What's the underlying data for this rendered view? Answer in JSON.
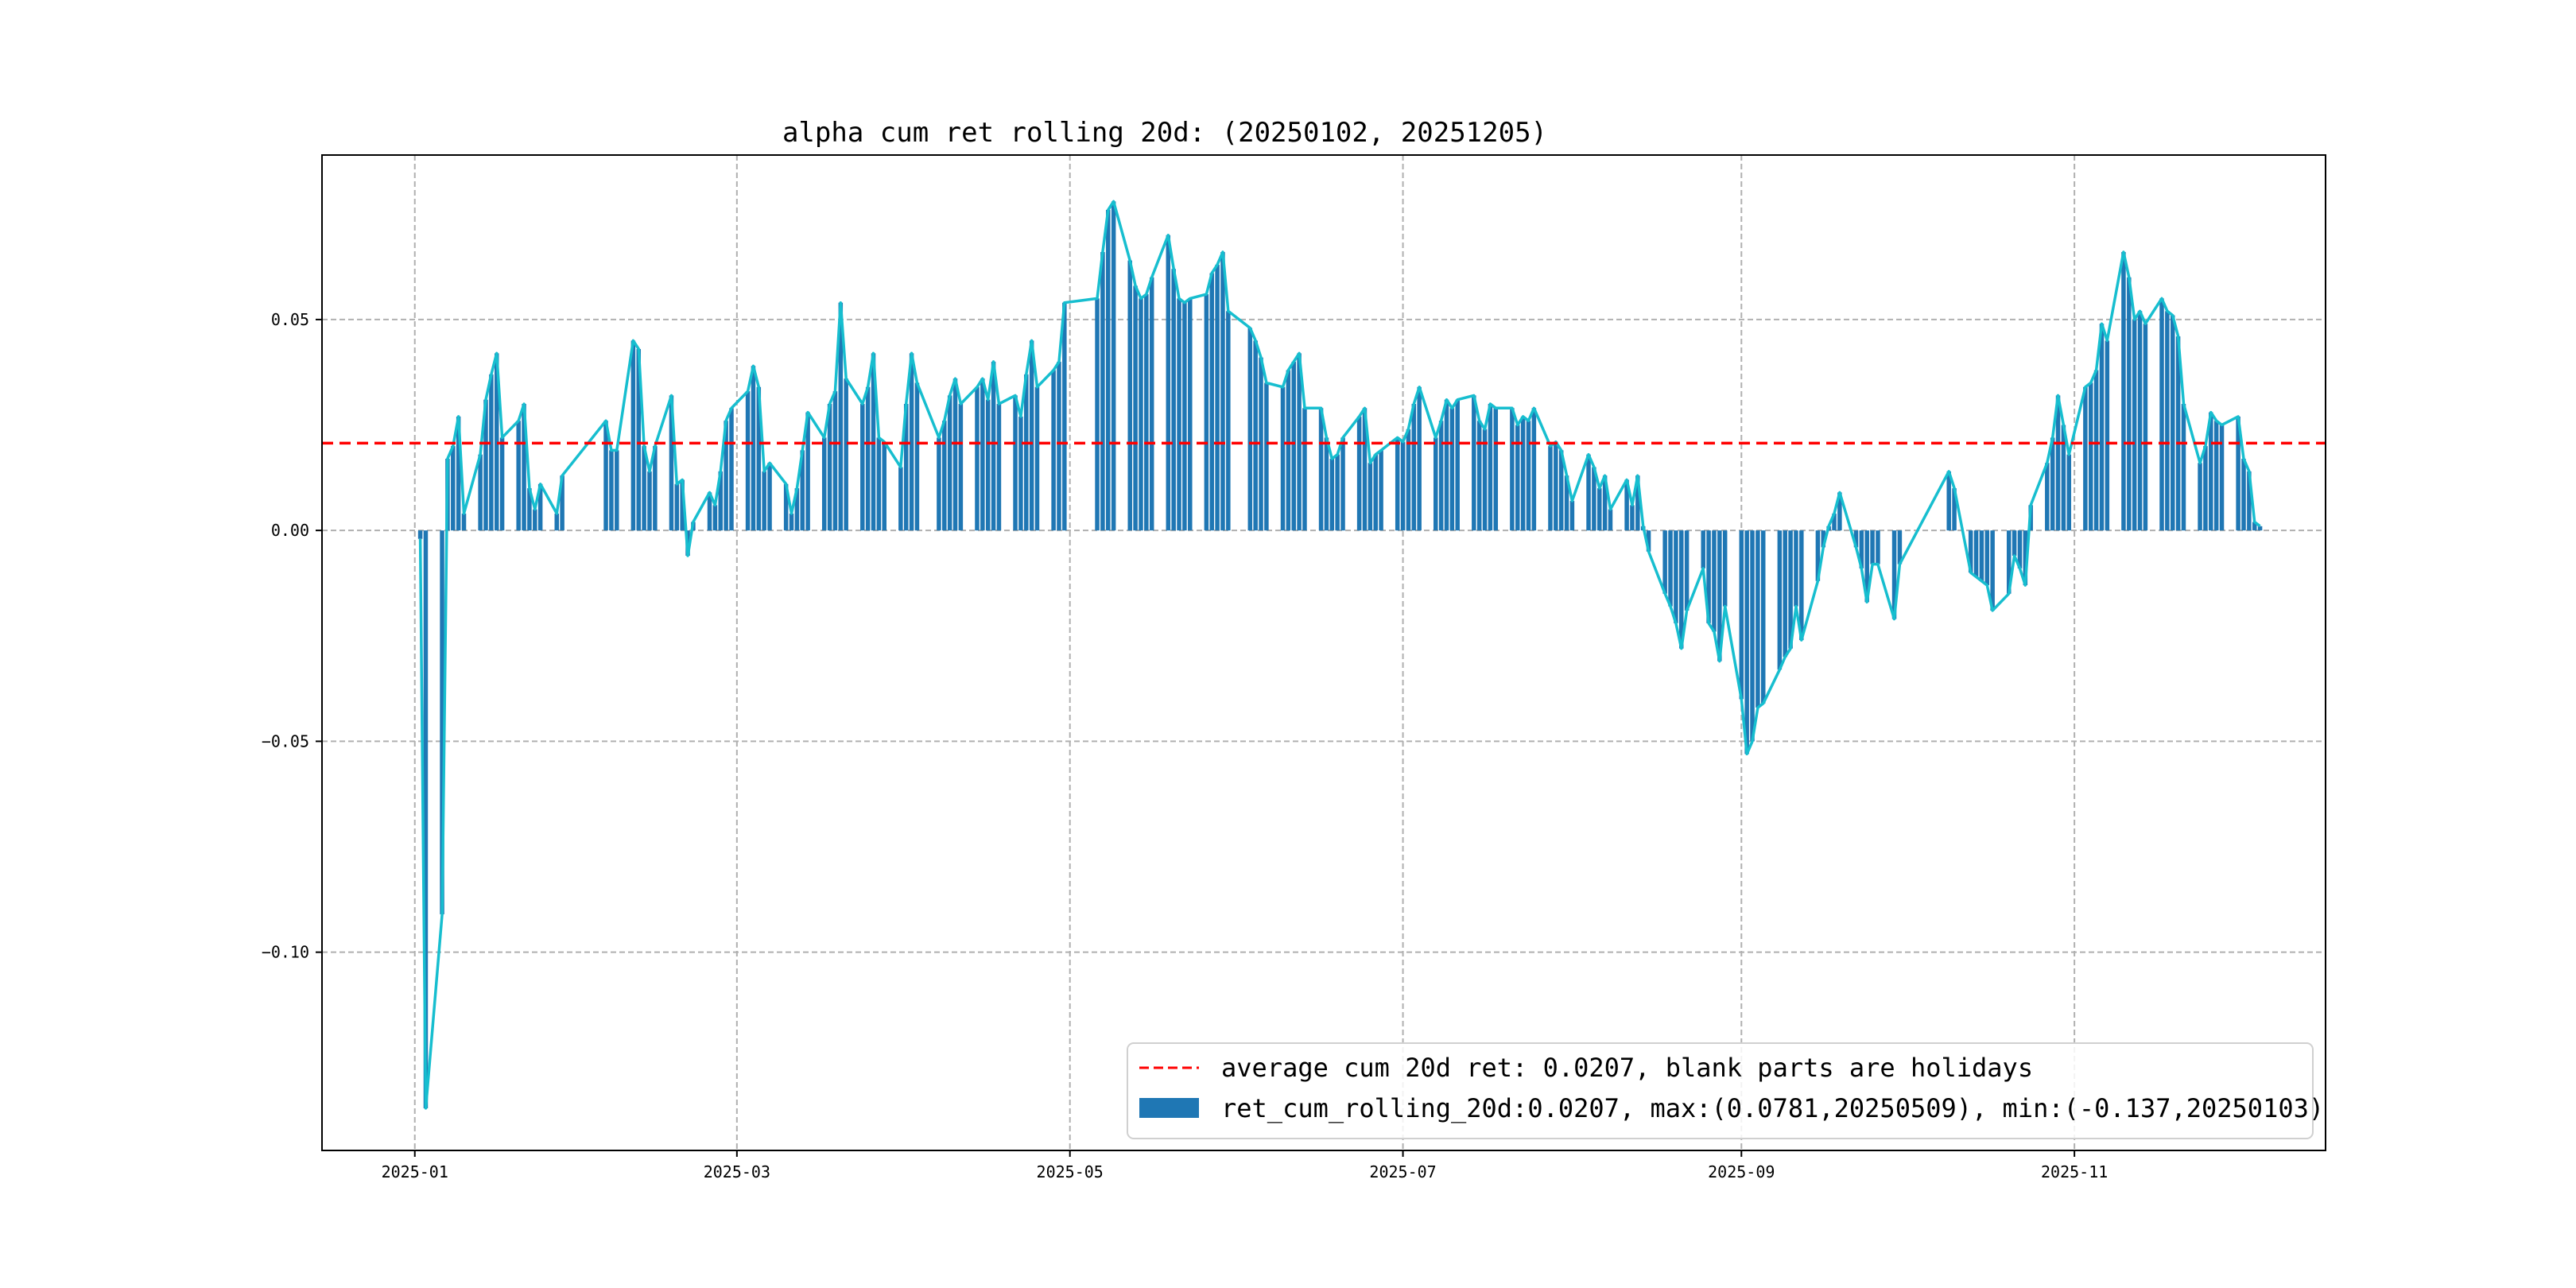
{
  "chart_data": {
    "type": "bar",
    "title": "alpha cum ret rolling 20d: (20250102, 20251205)",
    "xlabel": "",
    "ylabel": "",
    "x_ticks": [
      "2025-01",
      "2025-03",
      "2025-05",
      "2025-07",
      "2025-09",
      "2025-11"
    ],
    "y_ticks": [
      "0.05",
      "0.00",
      "−0.05",
      "−0.10"
    ],
    "xlim": [
      "2024-12-15",
      "2025-12-17"
    ],
    "ylim": [
      -0.147,
      0.089
    ],
    "grid": true,
    "legend_position": "lower-right",
    "average_line": {
      "value": 0.0207,
      "color": "#ff0000",
      "label": "average cum 20d ret: 0.0207, blank parts are holidays"
    },
    "series": [
      {
        "name": "ret_cum_rolling_20d:0.0207, max:(0.0781,20250509), min:(-0.137,20250103)",
        "bar_color": "#1f77b4",
        "line_color": "#17becf",
        "points": [
          [
            "2025-01-02",
            -0.002
          ],
          [
            "2025-01-03",
            -0.137
          ],
          [
            "2025-01-06",
            -0.091
          ],
          [
            "2025-01-07",
            0.017
          ],
          [
            "2025-01-08",
            0.02
          ],
          [
            "2025-01-09",
            0.027
          ],
          [
            "2025-01-10",
            0.004
          ],
          [
            "2025-01-13",
            0.018
          ],
          [
            "2025-01-14",
            0.031
          ],
          [
            "2025-01-15",
            0.037
          ],
          [
            "2025-01-16",
            0.042
          ],
          [
            "2025-01-17",
            0.022
          ],
          [
            "2025-01-20",
            0.026
          ],
          [
            "2025-01-21",
            0.03
          ],
          [
            "2025-01-22",
            0.01
          ],
          [
            "2025-01-23",
            0.005
          ],
          [
            "2025-01-24",
            0.011
          ],
          [
            "2025-01-27",
            0.004
          ],
          [
            "2025-01-28",
            0.013
          ],
          [
            "2025-02-05",
            0.026
          ],
          [
            "2025-02-06",
            0.019
          ],
          [
            "2025-02-07",
            0.019
          ],
          [
            "2025-02-10",
            0.045
          ],
          [
            "2025-02-11",
            0.043
          ],
          [
            "2025-02-12",
            0.02
          ],
          [
            "2025-02-13",
            0.014
          ],
          [
            "2025-02-14",
            0.02
          ],
          [
            "2025-02-17",
            0.032
          ],
          [
            "2025-02-18",
            0.011
          ],
          [
            "2025-02-19",
            0.012
          ],
          [
            "2025-02-20",
            -0.006
          ],
          [
            "2025-02-21",
            0.002
          ],
          [
            "2025-02-24",
            0.009
          ],
          [
            "2025-02-25",
            0.006
          ],
          [
            "2025-02-26",
            0.014
          ],
          [
            "2025-02-27",
            0.026
          ],
          [
            "2025-02-28",
            0.029
          ],
          [
            "2025-03-03",
            0.033
          ],
          [
            "2025-03-04",
            0.039
          ],
          [
            "2025-03-05",
            0.034
          ],
          [
            "2025-03-06",
            0.014
          ],
          [
            "2025-03-07",
            0.016
          ],
          [
            "2025-03-10",
            0.011
          ],
          [
            "2025-03-11",
            0.004
          ],
          [
            "2025-03-12",
            0.01
          ],
          [
            "2025-03-13",
            0.019
          ],
          [
            "2025-03-14",
            0.028
          ],
          [
            "2025-03-17",
            0.022
          ],
          [
            "2025-03-18",
            0.03
          ],
          [
            "2025-03-19",
            0.033
          ],
          [
            "2025-03-20",
            0.054
          ],
          [
            "2025-03-21",
            0.036
          ],
          [
            "2025-03-24",
            0.03
          ],
          [
            "2025-03-25",
            0.034
          ],
          [
            "2025-03-26",
            0.042
          ],
          [
            "2025-03-27",
            0.022
          ],
          [
            "2025-03-28",
            0.021
          ],
          [
            "2025-03-31",
            0.015
          ],
          [
            "2025-04-01",
            0.03
          ],
          [
            "2025-04-02",
            0.042
          ],
          [
            "2025-04-03",
            0.035
          ],
          [
            "2025-04-07",
            0.022
          ],
          [
            "2025-04-08",
            0.026
          ],
          [
            "2025-04-09",
            0.032
          ],
          [
            "2025-04-10",
            0.036
          ],
          [
            "2025-04-11",
            0.03
          ],
          [
            "2025-04-14",
            0.034
          ],
          [
            "2025-04-15",
            0.036
          ],
          [
            "2025-04-16",
            0.031
          ],
          [
            "2025-04-17",
            0.04
          ],
          [
            "2025-04-18",
            0.03
          ],
          [
            "2025-04-21",
            0.032
          ],
          [
            "2025-04-22",
            0.027
          ],
          [
            "2025-04-23",
            0.037
          ],
          [
            "2025-04-24",
            0.045
          ],
          [
            "2025-04-25",
            0.034
          ],
          [
            "2025-04-28",
            0.038
          ],
          [
            "2025-04-29",
            0.04
          ],
          [
            "2025-04-30",
            0.054
          ],
          [
            "2025-05-06",
            0.055
          ],
          [
            "2025-05-07",
            0.066
          ],
          [
            "2025-05-08",
            0.076
          ],
          [
            "2025-05-09",
            0.078
          ],
          [
            "2025-05-12",
            0.064
          ],
          [
            "2025-05-13",
            0.058
          ],
          [
            "2025-05-14",
            0.055
          ],
          [
            "2025-05-15",
            0.056
          ],
          [
            "2025-05-16",
            0.06
          ],
          [
            "2025-05-19",
            0.07
          ],
          [
            "2025-05-20",
            0.062
          ],
          [
            "2025-05-21",
            0.055
          ],
          [
            "2025-05-22",
            0.054
          ],
          [
            "2025-05-23",
            0.055
          ],
          [
            "2025-05-26",
            0.056
          ],
          [
            "2025-05-27",
            0.061
          ],
          [
            "2025-05-28",
            0.063
          ],
          [
            "2025-05-29",
            0.066
          ],
          [
            "2025-05-30",
            0.052
          ],
          [
            "2025-06-03",
            0.048
          ],
          [
            "2025-06-04",
            0.045
          ],
          [
            "2025-06-05",
            0.041
          ],
          [
            "2025-06-06",
            0.035
          ],
          [
            "2025-06-09",
            0.034
          ],
          [
            "2025-06-10",
            0.038
          ],
          [
            "2025-06-11",
            0.04
          ],
          [
            "2025-06-12",
            0.042
          ],
          [
            "2025-06-13",
            0.029
          ],
          [
            "2025-06-16",
            0.029
          ],
          [
            "2025-06-17",
            0.022
          ],
          [
            "2025-06-18",
            0.017
          ],
          [
            "2025-06-19",
            0.018
          ],
          [
            "2025-06-20",
            0.022
          ],
          [
            "2025-06-23",
            0.027
          ],
          [
            "2025-06-24",
            0.029
          ],
          [
            "2025-06-25",
            0.016
          ],
          [
            "2025-06-26",
            0.018
          ],
          [
            "2025-06-27",
            0.019
          ],
          [
            "2025-06-30",
            0.022
          ],
          [
            "2025-07-01",
            0.021
          ],
          [
            "2025-07-02",
            0.024
          ],
          [
            "2025-07-03",
            0.03
          ],
          [
            "2025-07-04",
            0.034
          ],
          [
            "2025-07-07",
            0.022
          ],
          [
            "2025-07-08",
            0.026
          ],
          [
            "2025-07-09",
            0.031
          ],
          [
            "2025-07-10",
            0.029
          ],
          [
            "2025-07-11",
            0.031
          ],
          [
            "2025-07-14",
            0.032
          ],
          [
            "2025-07-15",
            0.026
          ],
          [
            "2025-07-16",
            0.024
          ],
          [
            "2025-07-17",
            0.03
          ],
          [
            "2025-07-18",
            0.029
          ],
          [
            "2025-07-21",
            0.029
          ],
          [
            "2025-07-22",
            0.025
          ],
          [
            "2025-07-23",
            0.027
          ],
          [
            "2025-07-24",
            0.026
          ],
          [
            "2025-07-25",
            0.029
          ],
          [
            "2025-07-28",
            0.02
          ],
          [
            "2025-07-29",
            0.021
          ],
          [
            "2025-07-30",
            0.019
          ],
          [
            "2025-07-31",
            0.013
          ],
          [
            "2025-08-01",
            0.007
          ],
          [
            "2025-08-04",
            0.018
          ],
          [
            "2025-08-05",
            0.015
          ],
          [
            "2025-08-06",
            0.01
          ],
          [
            "2025-08-07",
            0.013
          ],
          [
            "2025-08-08",
            0.005
          ],
          [
            "2025-08-11",
            0.012
          ],
          [
            "2025-08-12",
            0.006
          ],
          [
            "2025-08-13",
            0.013
          ],
          [
            "2025-08-14",
            0.001
          ],
          [
            "2025-08-15",
            -0.005
          ],
          [
            "2025-08-18",
            -0.015
          ],
          [
            "2025-08-19",
            -0.018
          ],
          [
            "2025-08-20",
            -0.022
          ],
          [
            "2025-08-21",
            -0.028
          ],
          [
            "2025-08-22",
            -0.019
          ],
          [
            "2025-08-25",
            -0.009
          ],
          [
            "2025-08-26",
            -0.022
          ],
          [
            "2025-08-27",
            -0.024
          ],
          [
            "2025-08-28",
            -0.031
          ],
          [
            "2025-08-29",
            -0.018
          ],
          [
            "2025-09-01",
            -0.04
          ],
          [
            "2025-09-02",
            -0.053
          ],
          [
            "2025-09-03",
            -0.05
          ],
          [
            "2025-09-04",
            -0.042
          ],
          [
            "2025-09-05",
            -0.041
          ],
          [
            "2025-09-08",
            -0.033
          ],
          [
            "2025-09-09",
            -0.03
          ],
          [
            "2025-09-10",
            -0.028
          ],
          [
            "2025-09-11",
            -0.018
          ],
          [
            "2025-09-12",
            -0.026
          ],
          [
            "2025-09-15",
            -0.012
          ],
          [
            "2025-09-16",
            -0.004
          ],
          [
            "2025-09-17",
            0.001
          ],
          [
            "2025-09-18",
            0.004
          ],
          [
            "2025-09-19",
            0.009
          ],
          [
            "2025-09-22",
            -0.004
          ],
          [
            "2025-09-23",
            -0.009
          ],
          [
            "2025-09-24",
            -0.017
          ],
          [
            "2025-09-25",
            -0.008
          ],
          [
            "2025-09-26",
            -0.008
          ],
          [
            "2025-09-29",
            -0.021
          ],
          [
            "2025-09-30",
            -0.008
          ],
          [
            "2025-10-09",
            0.014
          ],
          [
            "2025-10-10",
            0.01
          ],
          [
            "2025-10-13",
            -0.01
          ],
          [
            "2025-10-14",
            -0.011
          ],
          [
            "2025-10-15",
            -0.012
          ],
          [
            "2025-10-16",
            -0.013
          ],
          [
            "2025-10-17",
            -0.019
          ],
          [
            "2025-10-20",
            -0.015
          ],
          [
            "2025-10-21",
            -0.006
          ],
          [
            "2025-10-22",
            -0.009
          ],
          [
            "2025-10-23",
            -0.013
          ],
          [
            "2025-10-24",
            0.006
          ],
          [
            "2025-10-27",
            0.016
          ],
          [
            "2025-10-28",
            0.022
          ],
          [
            "2025-10-29",
            0.032
          ],
          [
            "2025-10-30",
            0.025
          ],
          [
            "2025-10-31",
            0.018
          ],
          [
            "2025-11-03",
            0.034
          ],
          [
            "2025-11-04",
            0.035
          ],
          [
            "2025-11-05",
            0.038
          ],
          [
            "2025-11-06",
            0.049
          ],
          [
            "2025-11-07",
            0.045
          ],
          [
            "2025-11-10",
            0.066
          ],
          [
            "2025-11-11",
            0.06
          ],
          [
            "2025-11-12",
            0.05
          ],
          [
            "2025-11-13",
            0.052
          ],
          [
            "2025-11-14",
            0.049
          ],
          [
            "2025-11-17",
            0.055
          ],
          [
            "2025-11-18",
            0.052
          ],
          [
            "2025-11-19",
            0.051
          ],
          [
            "2025-11-20",
            0.046
          ],
          [
            "2025-11-21",
            0.03
          ],
          [
            "2025-11-24",
            0.016
          ],
          [
            "2025-11-25",
            0.02
          ],
          [
            "2025-11-26",
            0.028
          ],
          [
            "2025-11-27",
            0.026
          ],
          [
            "2025-11-28",
            0.025
          ],
          [
            "2025-12-01",
            0.027
          ],
          [
            "2025-12-02",
            0.017
          ],
          [
            "2025-12-03",
            0.014
          ],
          [
            "2025-12-04",
            0.002
          ],
          [
            "2025-12-05",
            0.001
          ]
        ]
      }
    ]
  }
}
